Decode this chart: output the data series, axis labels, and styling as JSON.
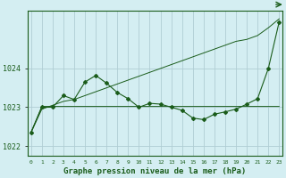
{
  "title": "Graphe pression niveau de la mer (hPa)",
  "background_color": "#d4eef2",
  "grid_color": "#b0cdd4",
  "line_color": "#1a5c1a",
  "ylim": [
    1021.75,
    1025.5
  ],
  "yticks": [
    1022,
    1023,
    1024
  ],
  "hours": [
    0,
    1,
    2,
    3,
    4,
    5,
    6,
    7,
    8,
    9,
    10,
    11,
    12,
    13,
    14,
    15,
    16,
    17,
    18,
    19,
    20,
    21,
    22,
    23
  ],
  "series1": [
    1022.35,
    1023.0,
    1023.0,
    1023.3,
    1023.2,
    1023.65,
    1023.82,
    1023.62,
    1023.38,
    1023.22,
    1023.0,
    1023.1,
    1023.08,
    1023.0,
    1022.92,
    1022.72,
    1022.68,
    1022.82,
    1022.88,
    1022.95,
    1023.08,
    1023.22,
    1024.0,
    1025.2
  ],
  "series2": [
    1022.35,
    1022.95,
    1023.05,
    1023.15,
    1023.2,
    1023.3,
    1023.4,
    1023.5,
    1023.6,
    1023.7,
    1023.8,
    1023.9,
    1024.0,
    1024.1,
    1024.2,
    1024.3,
    1024.4,
    1024.5,
    1024.6,
    1024.7,
    1024.75,
    1024.85,
    1025.05,
    1025.28
  ],
  "series3": [
    1022.35,
    1023.02,
    1023.02,
    1023.02,
    1023.02,
    1023.02,
    1023.02,
    1023.02,
    1023.02,
    1023.02,
    1023.02,
    1023.02,
    1023.02,
    1023.02,
    1023.02,
    1023.02,
    1023.02,
    1023.02,
    1023.02,
    1023.02,
    1023.02,
    1023.02,
    1023.02,
    1023.02
  ]
}
